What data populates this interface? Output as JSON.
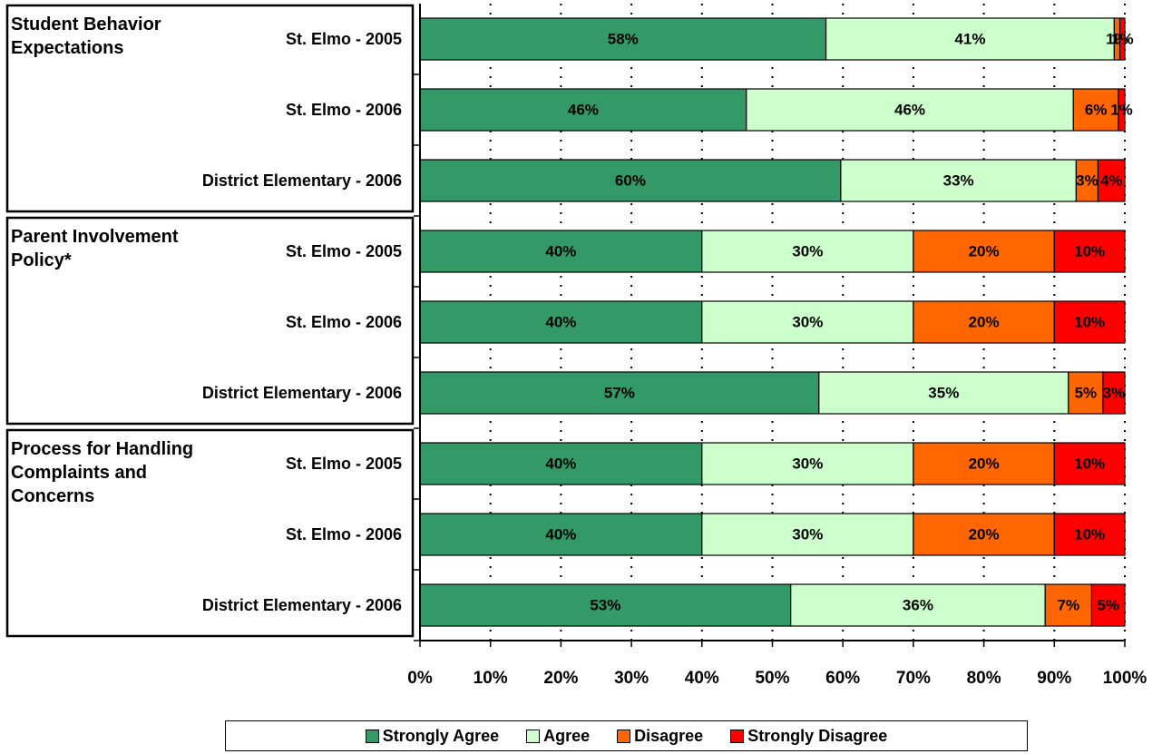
{
  "chart_data": {
    "type": "bar",
    "orientation": "horizontal",
    "stacked": true,
    "group_labels": [
      "Student Behavior Expectations",
      "Parent Involvement Policy*",
      "Process for Handling Complaints and Concerns"
    ],
    "categories": [
      "St. Elmo - 2005",
      "St. Elmo - 2006",
      "District Elementary - 2006",
      "St. Elmo - 2005",
      "St. Elmo - 2006",
      "District Elementary - 2006",
      "St. Elmo - 2005",
      "St. Elmo - 2006",
      "District Elementary - 2006"
    ],
    "series": [
      {
        "name": "Strongly Agree",
        "color": "#339966",
        "values": [
          57.6,
          46.3,
          59.7,
          40,
          40,
          56.6,
          40,
          40,
          52.6
        ],
        "value_labels": [
          "58%",
          "46%",
          "60%",
          "40%",
          "40%",
          "57%",
          "40%",
          "40%",
          "53%"
        ]
      },
      {
        "name": "Agree",
        "color": "#ccffcc",
        "values": [
          40.9,
          46.4,
          33.4,
          30,
          30,
          35.4,
          30,
          30,
          36.1
        ],
        "value_labels": [
          "41%",
          "46%",
          "33%",
          "30%",
          "30%",
          "35%",
          "30%",
          "30%",
          "36%"
        ]
      },
      {
        "name": "Disagree",
        "color": "#ff6600",
        "values": [
          0.8,
          6.4,
          3.1,
          20,
          20,
          4.9,
          20,
          20,
          6.6
        ],
        "value_labels": [
          "1%",
          "6%",
          "3%",
          "20%",
          "20%",
          "5%",
          "20%",
          "20%",
          "7%"
        ]
      },
      {
        "name": "Strongly Disagree",
        "color": "#ff0000",
        "values": [
          0.7,
          0.9,
          3.8,
          10,
          10,
          3.1,
          10,
          10,
          4.7
        ],
        "value_labels": [
          "1%",
          "1%",
          "4%",
          "10%",
          "10%",
          "3%",
          "10%",
          "10%",
          "5%"
        ]
      }
    ],
    "xlim": [
      0,
      100
    ],
    "xticks": [
      {
        "value": 0,
        "label": "0%"
      },
      {
        "value": 10,
        "label": "10%"
      },
      {
        "value": 20,
        "label": "20%"
      },
      {
        "value": 30,
        "label": "30%"
      },
      {
        "value": 40,
        "label": "40%"
      },
      {
        "value": 50,
        "label": "50%"
      },
      {
        "value": 60,
        "label": "60%"
      },
      {
        "value": 70,
        "label": "70%"
      },
      {
        "value": 80,
        "label": "80%"
      },
      {
        "value": 90,
        "label": "90%"
      },
      {
        "value": 100,
        "label": "100%"
      }
    ],
    "grid": true,
    "legend": "bottom"
  }
}
